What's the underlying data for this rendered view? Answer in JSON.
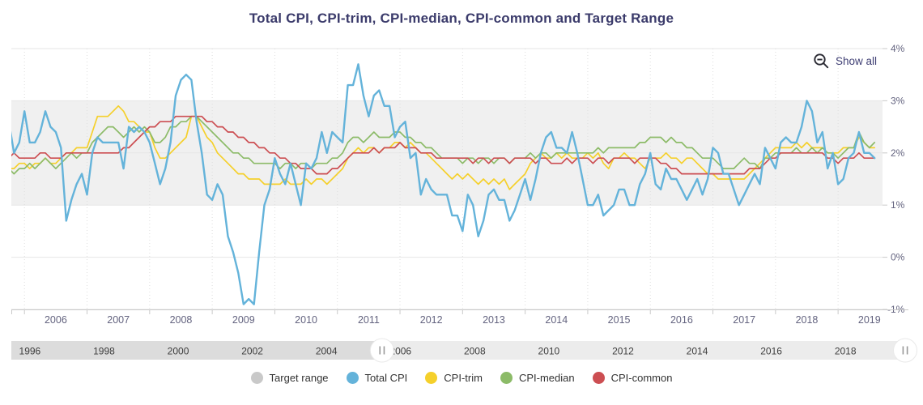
{
  "title": "Total CPI, CPI-trim, CPI-median, CPI-common and Target Range",
  "show_all": {
    "label": "Show all",
    "icon": "zoom-out-magnifier-minus"
  },
  "colors": {
    "title_text": "#3b3b6b",
    "axis_label_text": "#63637f",
    "navigator_label_text": "#3d3d3d",
    "gridline": "#e6e6e6",
    "gridline_dotted": "#dedede",
    "axis_line": "#c9c9c9",
    "target_band": "#f0f0f0",
    "navigator_unselected": "#dcdcdc",
    "navigator_selected": "#ececec",
    "handle_fill": "#ffffff",
    "handle_grip": "#9a9a9a"
  },
  "y_axis": {
    "labels": [
      "4%",
      "3%",
      "2%",
      "1%",
      "0%",
      "-1%"
    ],
    "values": [
      4,
      3,
      2,
      1,
      0,
      -1
    ]
  },
  "x_axis": {
    "year_labels": [
      2006,
      2007,
      2008,
      2009,
      2010,
      2011,
      2012,
      2013,
      2014,
      2015,
      2016,
      2017,
      2018,
      2019
    ]
  },
  "navigator": {
    "year_labels": [
      1996,
      1998,
      2000,
      2002,
      2004,
      2006,
      2008,
      2010,
      2012,
      2014,
      2016,
      2018
    ],
    "range": [
      1995.5,
      2019.7
    ],
    "selected_start": 2005.5,
    "selected_end": 2019.7,
    "handle_glyph": "||"
  },
  "legend": {
    "items": [
      {
        "label": "Target range",
        "color": "#c9c9c9"
      },
      {
        "label": "Total CPI",
        "color": "#64b3da"
      },
      {
        "label": "CPI-trim",
        "color": "#f5d02b"
      },
      {
        "label": "CPI-median",
        "color": "#8cbb68"
      },
      {
        "label": "CPI-common",
        "color": "#cc4e52"
      }
    ]
  },
  "chart_data": {
    "type": "line",
    "title": "Total CPI, CPI-trim, CPI-median, CPI-common and Target Range",
    "xlabel": "",
    "ylabel": "percent",
    "ylim": [
      -1,
      4
    ],
    "x_start": "2005-10",
    "frequency": "monthly",
    "grid": true,
    "legend_position": "bottom",
    "target_range": {
      "low": 1,
      "high": 3
    },
    "series": [
      {
        "name": "Total CPI",
        "color": "#64b3da",
        "values": [
          2.6,
          2.0,
          2.2,
          2.8,
          2.2,
          2.2,
          2.4,
          2.8,
          2.5,
          2.4,
          2.1,
          0.7,
          1.1,
          1.4,
          1.6,
          1.2,
          2.0,
          2.3,
          2.2,
          2.2,
          2.2,
          2.2,
          1.7,
          2.5,
          2.4,
          2.5,
          2.4,
          2.2,
          1.8,
          1.4,
          1.7,
          2.2,
          3.1,
          3.4,
          3.5,
          3.4,
          2.6,
          2.0,
          1.2,
          1.1,
          1.4,
          1.2,
          0.4,
          0.1,
          -0.3,
          -0.9,
          -0.8,
          -0.9,
          0.1,
          1.0,
          1.3,
          1.9,
          1.6,
          1.4,
          1.8,
          1.4,
          1.0,
          1.8,
          1.7,
          1.9,
          2.4,
          2.0,
          2.4,
          2.3,
          2.2,
          3.3,
          3.3,
          3.7,
          3.1,
          2.7,
          3.1,
          3.2,
          2.9,
          2.9,
          2.3,
          2.5,
          2.6,
          1.9,
          2.0,
          1.2,
          1.5,
          1.3,
          1.2,
          1.2,
          1.2,
          0.8,
          0.8,
          0.5,
          1.2,
          1.0,
          0.4,
          0.7,
          1.2,
          1.3,
          1.1,
          1.1,
          0.7,
          0.9,
          1.2,
          1.5,
          1.1,
          1.5,
          2.0,
          2.3,
          2.4,
          2.1,
          2.1,
          2.0,
          2.4,
          2.0,
          1.5,
          1.0,
          1.0,
          1.2,
          0.8,
          0.9,
          1.0,
          1.3,
          1.3,
          1.0,
          1.0,
          1.4,
          1.6,
          2.0,
          1.4,
          1.3,
          1.7,
          1.5,
          1.5,
          1.3,
          1.1,
          1.3,
          1.5,
          1.2,
          1.5,
          2.1,
          2.0,
          1.6,
          1.6,
          1.3,
          1.0,
          1.2,
          1.4,
          1.6,
          1.4,
          2.1,
          1.9,
          1.7,
          2.2,
          2.3,
          2.2,
          2.2,
          2.5,
          3.0,
          2.8,
          2.2,
          2.4,
          1.7,
          2.0,
          1.4,
          1.5,
          1.9,
          2.0,
          2.4,
          2.0,
          2.0,
          1.9
        ]
      },
      {
        "name": "CPI-trim",
        "color": "#f5d02b",
        "values": [
          1.7,
          1.7,
          1.8,
          1.8,
          1.7,
          1.8,
          1.8,
          1.9,
          1.8,
          1.8,
          1.9,
          2.0,
          2.0,
          2.1,
          2.1,
          2.1,
          2.4,
          2.7,
          2.7,
          2.7,
          2.8,
          2.9,
          2.8,
          2.6,
          2.6,
          2.5,
          2.4,
          2.4,
          2.1,
          1.9,
          1.9,
          2.0,
          2.1,
          2.2,
          2.3,
          2.7,
          2.7,
          2.5,
          2.3,
          2.2,
          2.0,
          1.9,
          1.8,
          1.7,
          1.6,
          1.6,
          1.5,
          1.5,
          1.5,
          1.4,
          1.4,
          1.4,
          1.4,
          1.5,
          1.4,
          1.4,
          1.4,
          1.5,
          1.4,
          1.5,
          1.5,
          1.4,
          1.5,
          1.6,
          1.7,
          1.9,
          2.0,
          2.1,
          2.0,
          2.1,
          2.1,
          2.0,
          2.1,
          2.1,
          2.2,
          2.2,
          2.1,
          2.2,
          2.1,
          2.0,
          2.0,
          1.9,
          1.8,
          1.7,
          1.6,
          1.5,
          1.6,
          1.5,
          1.6,
          1.5,
          1.4,
          1.5,
          1.4,
          1.5,
          1.4,
          1.5,
          1.3,
          1.4,
          1.5,
          1.6,
          1.8,
          1.9,
          2.0,
          1.9,
          1.9,
          2.0,
          1.9,
          2.0,
          1.9,
          1.9,
          1.9,
          2.0,
          1.9,
          2.0,
          1.8,
          1.7,
          1.9,
          1.9,
          2.0,
          1.9,
          1.9,
          1.8,
          1.7,
          1.9,
          1.9,
          1.9,
          2.0,
          1.9,
          1.9,
          1.8,
          1.9,
          1.9,
          1.8,
          1.7,
          1.6,
          1.6,
          1.5,
          1.5,
          1.5,
          1.5,
          1.5,
          1.5,
          1.6,
          1.7,
          1.8,
          1.9,
          2.0,
          2.1,
          2.1,
          2.1,
          2.1,
          2.2,
          2.1,
          2.2,
          2.1,
          2.1,
          2.1,
          2.0,
          2.0,
          2.0,
          2.1,
          2.1,
          2.1,
          2.3,
          2.2,
          2.1,
          2.1
        ]
      },
      {
        "name": "CPI-median",
        "color": "#8cbb68",
        "values": [
          1.7,
          1.6,
          1.7,
          1.7,
          1.8,
          1.7,
          1.8,
          1.9,
          1.8,
          1.7,
          1.8,
          1.9,
          2.0,
          1.9,
          2.0,
          2.0,
          2.2,
          2.3,
          2.4,
          2.5,
          2.5,
          2.4,
          2.3,
          2.4,
          2.5,
          2.4,
          2.5,
          2.4,
          2.2,
          2.2,
          2.3,
          2.5,
          2.5,
          2.6,
          2.6,
          2.7,
          2.7,
          2.6,
          2.5,
          2.4,
          2.3,
          2.2,
          2.1,
          2.0,
          2.0,
          1.9,
          1.9,
          1.8,
          1.8,
          1.8,
          1.8,
          1.8,
          1.7,
          1.8,
          1.8,
          1.7,
          1.8,
          1.8,
          1.7,
          1.8,
          1.8,
          1.8,
          1.9,
          1.9,
          2.0,
          2.2,
          2.3,
          2.3,
          2.2,
          2.3,
          2.4,
          2.3,
          2.3,
          2.3,
          2.4,
          2.4,
          2.3,
          2.3,
          2.2,
          2.2,
          2.1,
          2.1,
          2.0,
          1.9,
          1.9,
          1.9,
          1.9,
          1.8,
          1.9,
          1.9,
          1.8,
          1.9,
          1.9,
          1.8,
          1.9,
          1.9,
          1.8,
          1.9,
          1.9,
          1.9,
          2.0,
          1.9,
          2.0,
          2.0,
          1.9,
          2.0,
          2.0,
          2.0,
          2.0,
          2.0,
          2.0,
          2.0,
          2.0,
          2.1,
          2.0,
          2.1,
          2.1,
          2.1,
          2.1,
          2.1,
          2.1,
          2.2,
          2.2,
          2.3,
          2.3,
          2.3,
          2.2,
          2.3,
          2.2,
          2.2,
          2.1,
          2.1,
          2.0,
          1.9,
          1.9,
          1.9,
          1.8,
          1.7,
          1.7,
          1.7,
          1.8,
          1.9,
          1.8,
          1.8,
          1.7,
          1.9,
          1.9,
          2.0,
          2.0,
          2.0,
          2.0,
          2.1,
          2.0,
          2.0,
          2.1,
          2.0,
          2.1,
          2.0,
          2.0,
          1.9,
          2.0,
          2.1,
          2.1,
          2.4,
          2.2,
          2.1,
          2.2
        ]
      },
      {
        "name": "CPI-common",
        "color": "#cc4e52",
        "values": [
          1.9,
          2.0,
          1.9,
          1.9,
          1.9,
          1.9,
          2.0,
          2.0,
          1.9,
          1.9,
          1.9,
          2.0,
          2.0,
          2.0,
          2.0,
          2.0,
          2.0,
          2.0,
          2.0,
          2.0,
          2.0,
          2.0,
          2.1,
          2.1,
          2.2,
          2.3,
          2.4,
          2.5,
          2.5,
          2.6,
          2.6,
          2.6,
          2.7,
          2.7,
          2.7,
          2.7,
          2.7,
          2.7,
          2.6,
          2.6,
          2.5,
          2.5,
          2.4,
          2.4,
          2.3,
          2.3,
          2.2,
          2.2,
          2.1,
          2.1,
          2.0,
          2.0,
          1.9,
          1.9,
          1.8,
          1.8,
          1.7,
          1.7,
          1.7,
          1.6,
          1.6,
          1.6,
          1.7,
          1.7,
          1.8,
          1.9,
          2.0,
          2.0,
          2.0,
          2.0,
          2.1,
          2.0,
          2.1,
          2.1,
          2.1,
          2.2,
          2.1,
          2.1,
          2.1,
          2.0,
          2.0,
          2.0,
          1.9,
          1.9,
          1.9,
          1.9,
          1.9,
          1.9,
          1.9,
          1.8,
          1.9,
          1.9,
          1.8,
          1.9,
          1.9,
          1.9,
          1.8,
          1.9,
          1.9,
          1.9,
          1.9,
          1.8,
          1.9,
          1.9,
          1.8,
          1.8,
          1.8,
          1.9,
          1.8,
          1.9,
          1.9,
          1.9,
          1.8,
          1.9,
          1.9,
          1.8,
          1.9,
          1.9,
          1.9,
          1.9,
          1.8,
          1.9,
          1.9,
          1.9,
          1.9,
          1.8,
          1.8,
          1.7,
          1.7,
          1.6,
          1.6,
          1.6,
          1.6,
          1.6,
          1.6,
          1.6,
          1.6,
          1.6,
          1.6,
          1.6,
          1.6,
          1.6,
          1.7,
          1.7,
          1.7,
          1.8,
          1.9,
          1.9,
          2.0,
          2.0,
          2.0,
          2.0,
          2.0,
          2.0,
          2.0,
          2.0,
          2.0,
          1.9,
          1.9,
          1.8,
          1.9,
          1.9,
          1.9,
          2.0,
          1.9,
          1.9,
          1.9
        ]
      }
    ]
  }
}
